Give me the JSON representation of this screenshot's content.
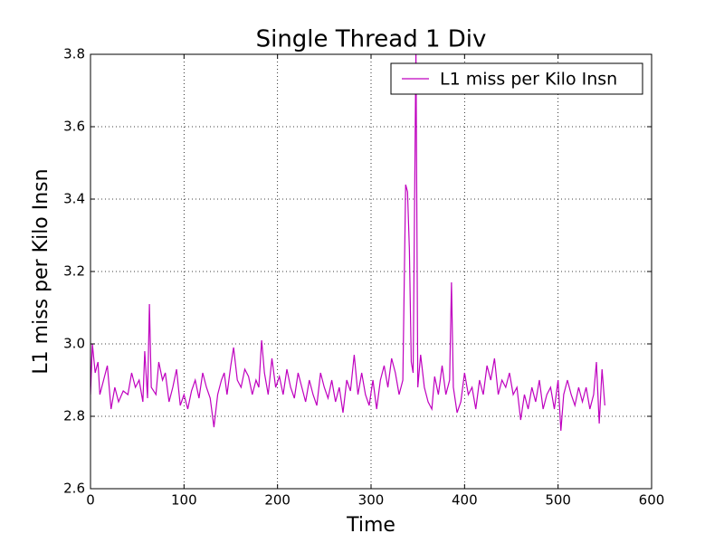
{
  "chart_data": {
    "type": "line",
    "title": "Single Thread 1 Div",
    "xlabel": "Time",
    "ylabel": "L1 miss per Kilo Insn",
    "x": [
      0,
      2,
      5,
      8,
      10,
      14,
      18,
      22,
      26,
      30,
      35,
      40,
      44,
      48,
      52,
      56,
      58,
      61,
      63,
      65,
      70,
      73,
      77,
      80,
      84,
      88,
      92,
      96,
      100,
      104,
      108,
      112,
      116,
      120,
      124,
      128,
      132,
      136,
      140,
      143,
      146,
      150,
      153,
      157,
      161,
      165,
      169,
      173,
      177,
      180,
      183,
      186,
      190,
      194,
      198,
      202,
      206,
      210,
      214,
      218,
      222,
      226,
      230,
      234,
      238,
      242,
      246,
      250,
      254,
      258,
      262,
      266,
      270,
      274,
      278,
      282,
      286,
      290,
      294,
      298,
      302,
      306,
      310,
      314,
      318,
      322,
      326,
      330,
      334,
      337,
      339,
      341,
      343,
      345,
      348,
      350,
      353,
      357,
      361,
      365,
      368,
      372,
      376,
      380,
      384,
      386,
      388,
      392,
      396,
      400,
      404,
      408,
      412,
      416,
      420,
      424,
      428,
      432,
      436,
      440,
      444,
      448,
      452,
      456,
      460,
      464,
      468,
      472,
      476,
      480,
      484,
      488,
      492,
      496,
      500,
      503,
      506,
      510,
      514,
      518,
      522,
      526,
      530,
      534,
      538,
      541,
      544,
      547,
      550
    ],
    "series": [
      {
        "name": "L1 miss per Kilo Insn",
        "color": "#bf00bf",
        "values": [
          2.86,
          3.0,
          2.92,
          2.95,
          2.86,
          2.9,
          2.94,
          2.82,
          2.88,
          2.84,
          2.87,
          2.86,
          2.92,
          2.88,
          2.9,
          2.84,
          2.98,
          2.85,
          3.11,
          2.88,
          2.86,
          2.95,
          2.9,
          2.92,
          2.84,
          2.88,
          2.93,
          2.83,
          2.86,
          2.82,
          2.87,
          2.9,
          2.85,
          2.92,
          2.88,
          2.85,
          2.77,
          2.86,
          2.9,
          2.92,
          2.86,
          2.94,
          2.99,
          2.9,
          2.88,
          2.93,
          2.91,
          2.86,
          2.9,
          2.88,
          3.01,
          2.92,
          2.86,
          2.96,
          2.88,
          2.91,
          2.86,
          2.93,
          2.88,
          2.85,
          2.92,
          2.88,
          2.84,
          2.9,
          2.86,
          2.83,
          2.92,
          2.88,
          2.85,
          2.9,
          2.84,
          2.88,
          2.81,
          2.9,
          2.87,
          2.97,
          2.86,
          2.92,
          2.86,
          2.83,
          2.9,
          2.82,
          2.9,
          2.94,
          2.88,
          2.96,
          2.92,
          2.86,
          2.9,
          3.44,
          3.42,
          3.26,
          2.95,
          2.92,
          3.82,
          2.88,
          2.97,
          2.88,
          2.84,
          2.82,
          2.91,
          2.86,
          2.94,
          2.86,
          2.9,
          3.17,
          2.88,
          2.81,
          2.84,
          2.92,
          2.86,
          2.88,
          2.82,
          2.9,
          2.86,
          2.94,
          2.9,
          2.96,
          2.86,
          2.9,
          2.88,
          2.92,
          2.86,
          2.88,
          2.79,
          2.86,
          2.82,
          2.88,
          2.84,
          2.9,
          2.82,
          2.86,
          2.88,
          2.82,
          2.9,
          2.76,
          2.86,
          2.9,
          2.86,
          2.83,
          2.88,
          2.84,
          2.88,
          2.82,
          2.86,
          2.95,
          2.78,
          2.93,
          2.83
        ]
      }
    ],
    "xlim": [
      0,
      600
    ],
    "xticks": [
      0,
      100,
      200,
      300,
      400,
      500,
      600
    ],
    "ylim": [
      2.6,
      3.8
    ],
    "yticks": [
      2.6,
      2.8,
      {
        "value": 3,
        "label": "3.0"
      },
      3.2,
      3.4,
      3.6,
      3.8
    ],
    "grid": true,
    "legend": "upper right"
  }
}
